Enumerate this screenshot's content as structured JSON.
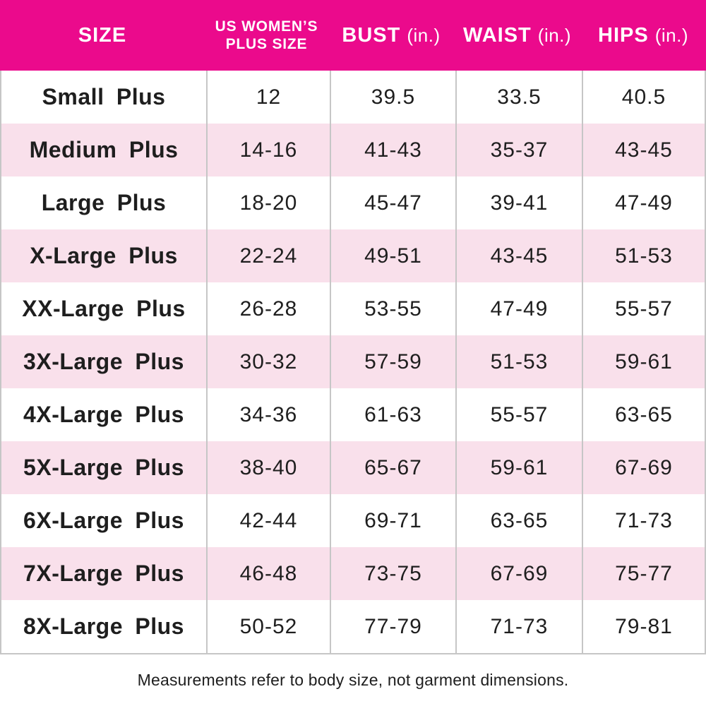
{
  "chart_data": {
    "type": "table",
    "title": "",
    "columns": [
      "SIZE",
      "US WOMEN’S PLUS SIZE",
      "BUST (in.)",
      "WAIST (in.)",
      "HIPS (in.)"
    ],
    "rows": [
      [
        "Small Plus",
        "12",
        "39.5",
        "33.5",
        "40.5"
      ],
      [
        "Medium Plus",
        "14-16",
        "41-43",
        "35-37",
        "43-45"
      ],
      [
        "Large Plus",
        "18-20",
        "45-47",
        "39-41",
        "47-49"
      ],
      [
        "X-Large Plus",
        "22-24",
        "49-51",
        "43-45",
        "51-53"
      ],
      [
        "XX-Large Plus",
        "26-28",
        "53-55",
        "47-49",
        "55-57"
      ],
      [
        "3X-Large Plus",
        "30-32",
        "57-59",
        "51-53",
        "59-61"
      ],
      [
        "4X-Large Plus",
        "34-36",
        "61-63",
        "55-57",
        "63-65"
      ],
      [
        "5X-Large Plus",
        "38-40",
        "65-67",
        "59-61",
        "67-69"
      ],
      [
        "6X-Large Plus",
        "42-44",
        "69-71",
        "63-65",
        "71-73"
      ],
      [
        "7X-Large Plus",
        "46-48",
        "73-75",
        "67-69",
        "75-77"
      ],
      [
        "8X-Large Plus",
        "50-52",
        "77-79",
        "71-73",
        "79-81"
      ]
    ],
    "note": "Measurements refer to body size, not garment dimensions."
  },
  "header": {
    "col1": "SIZE",
    "col2_line1": "US WOMEN’S",
    "col2_line2": "PLUS SIZE",
    "col3_label": "BUST",
    "col3_unit": "(in.)",
    "col4_label": "WAIST",
    "col4_unit": "(in.)",
    "col5_label": "HIPS",
    "col5_unit": "(in.)"
  },
  "footer": {
    "note": "Measurements refer to body size, not garment dimensions."
  },
  "colors": {
    "header_bg": "#EB0A8C",
    "row_alt_bg": "#F9E0EB",
    "text": "#1E1E1E",
    "grid": "#C6C6C6",
    "header_text": "#FFFFFF"
  }
}
